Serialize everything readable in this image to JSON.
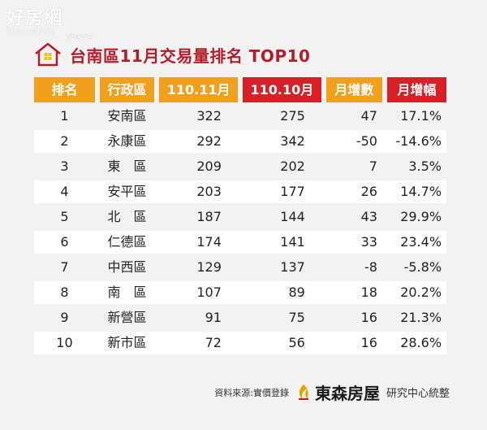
{
  "watermark": {
    "main": "好房網",
    "sub": "HouseFun",
    "news": "News"
  },
  "title": "台南區11月交易量排名 TOP10",
  "columns": [
    "排名",
    "行政區",
    "110.11月",
    "110.10月",
    "月增數",
    "月增幅"
  ],
  "colors": {
    "orange": "#f0a01c",
    "red": "#d61f26",
    "title": "#b41e2a"
  },
  "rows": [
    {
      "rank": "1",
      "district": "安南區",
      "nov": "322",
      "oct": "275",
      "diff": "47",
      "pct": "17.1%"
    },
    {
      "rank": "2",
      "district": "永康區",
      "nov": "292",
      "oct": "342",
      "diff": "-50",
      "pct": "-14.6%"
    },
    {
      "rank": "3",
      "district": "東　區",
      "nov": "209",
      "oct": "202",
      "diff": "7",
      "pct": "3.5%"
    },
    {
      "rank": "4",
      "district": "安平區",
      "nov": "203",
      "oct": "177",
      "diff": "26",
      "pct": "14.7%"
    },
    {
      "rank": "5",
      "district": "北　區",
      "nov": "187",
      "oct": "144",
      "diff": "43",
      "pct": "29.9%"
    },
    {
      "rank": "6",
      "district": "仁德區",
      "nov": "174",
      "oct": "141",
      "diff": "33",
      "pct": "23.4%"
    },
    {
      "rank": "7",
      "district": "中西區",
      "nov": "129",
      "oct": "137",
      "diff": "-8",
      "pct": "-5.8%"
    },
    {
      "rank": "8",
      "district": "南　區",
      "nov": "107",
      "oct": "89",
      "diff": "18",
      "pct": "20.2%"
    },
    {
      "rank": "9",
      "district": "新營區",
      "nov": "91",
      "oct": "75",
      "diff": "16",
      "pct": "21.3%"
    },
    {
      "rank": "10",
      "district": "新市區",
      "nov": "72",
      "oct": "56",
      "diff": "16",
      "pct": "28.6%"
    }
  ],
  "footer": {
    "source": "資料來源:實價登錄",
    "brand": "東森房屋",
    "dept": "研究中心統整"
  }
}
